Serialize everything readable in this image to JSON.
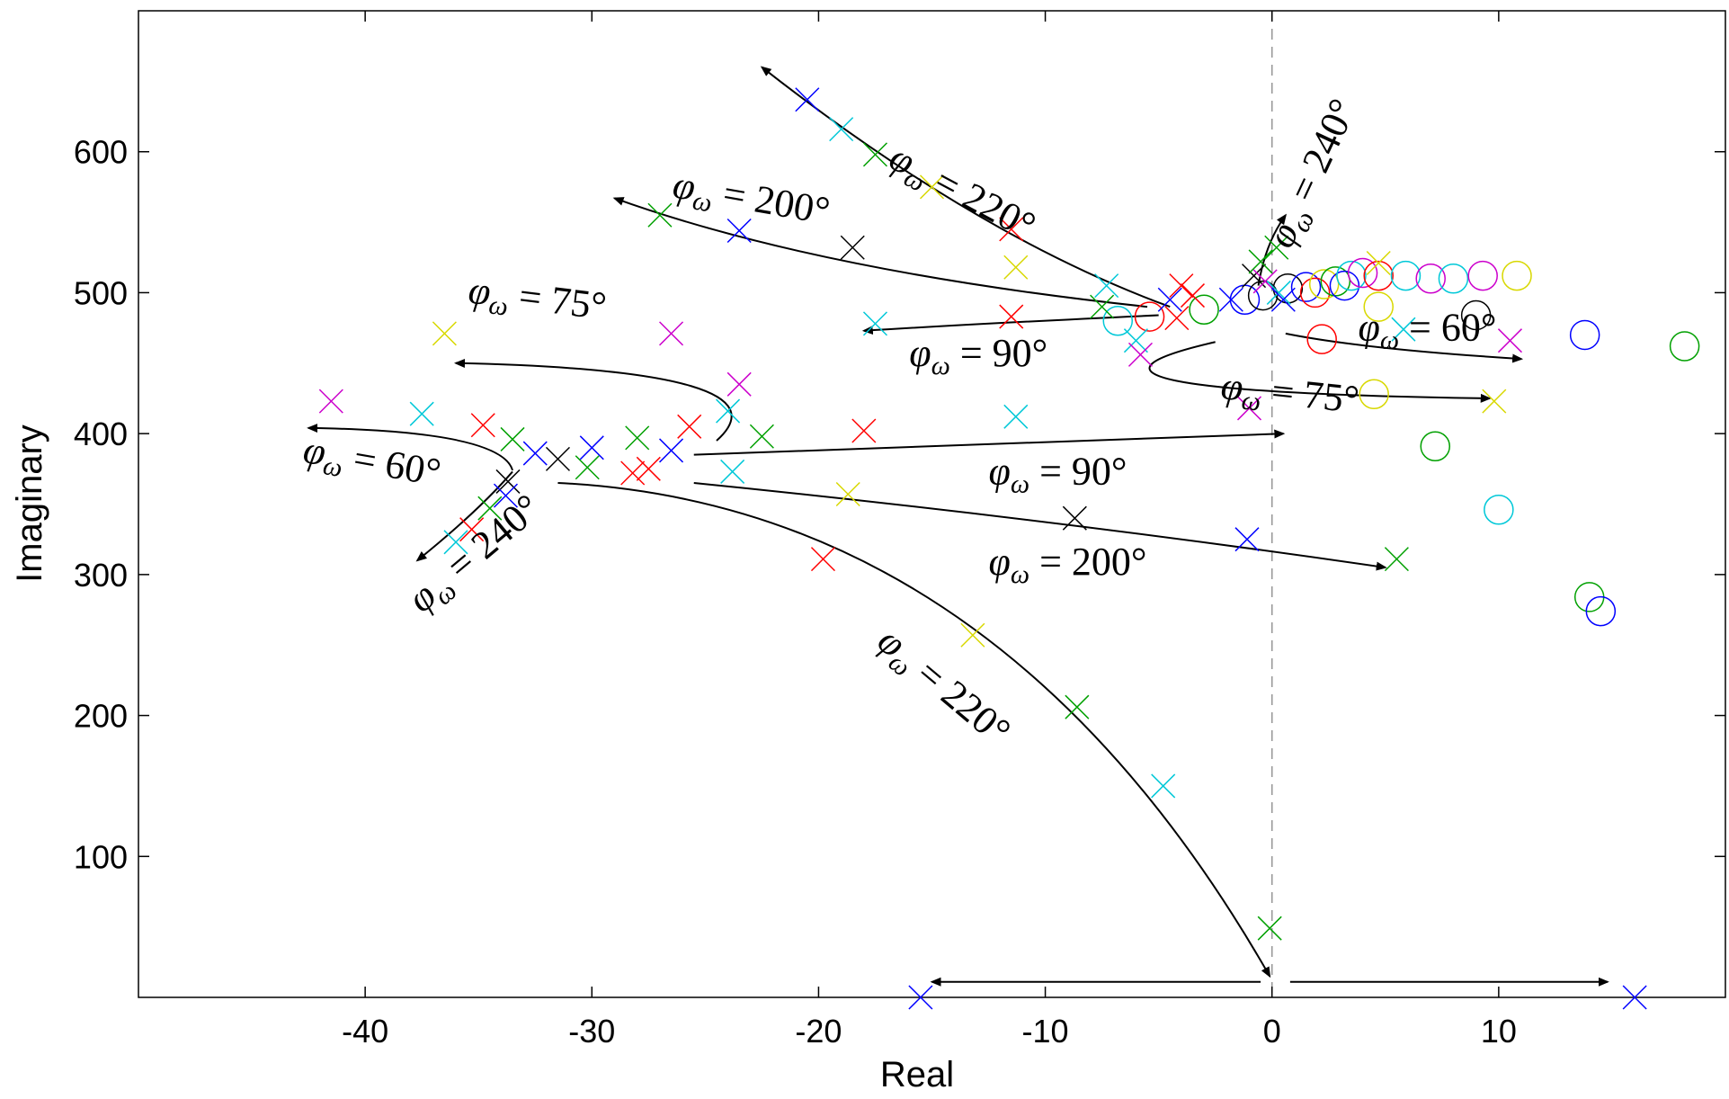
{
  "chart_data": {
    "type": "scatter",
    "title": "",
    "xlabel": "Real",
    "ylabel": "Imaginary",
    "xlim": [
      -50,
      20
    ],
    "ylim": [
      0,
      700
    ],
    "xticks": [
      -40,
      -30,
      -20,
      -10,
      0,
      10
    ],
    "xtick_labels": [
      "-40",
      "-30",
      "-20",
      "-10",
      "0",
      "10"
    ],
    "yticks": [
      100,
      200,
      300,
      400,
      500,
      600
    ],
    "ytick_labels": [
      "100",
      "200",
      "300",
      "400",
      "500",
      "600"
    ],
    "grid": false,
    "reference_line": {
      "x": 0,
      "style": "dashed"
    },
    "colors": {
      "blue": "#0000ff",
      "red": "#ff0000",
      "green": "#00a000",
      "cyan": "#00c8d8",
      "magenta": "#cc00cc",
      "yellow": "#d8d800",
      "black": "#000000"
    },
    "poles": [
      {
        "x": -20.5,
        "y": 637,
        "c": "blue"
      },
      {
        "x": -19,
        "y": 616,
        "c": "cyan"
      },
      {
        "x": -17.5,
        "y": 598,
        "c": "green"
      },
      {
        "x": -15,
        "y": 575,
        "c": "yellow"
      },
      {
        "x": -11.5,
        "y": 545,
        "c": "red"
      },
      {
        "x": -11.3,
        "y": 518,
        "c": "yellow"
      },
      {
        "x": -27,
        "y": 555,
        "c": "green"
      },
      {
        "x": -23.5,
        "y": 544,
        "c": "blue"
      },
      {
        "x": -18.5,
        "y": 532,
        "c": "black"
      },
      {
        "x": -7.3,
        "y": 505,
        "c": "cyan"
      },
      {
        "x": -7.5,
        "y": 490,
        "c": "green"
      },
      {
        "x": -11.5,
        "y": 483,
        "c": "red"
      },
      {
        "x": -17.5,
        "y": 478,
        "c": "cyan"
      },
      {
        "x": -6,
        "y": 466,
        "c": "cyan"
      },
      {
        "x": -5.8,
        "y": 456,
        "c": "magenta"
      },
      {
        "x": -4.5,
        "y": 495,
        "c": "blue"
      },
      {
        "x": -4,
        "y": 505,
        "c": "red"
      },
      {
        "x": -3.5,
        "y": 498,
        "c": "red"
      },
      {
        "x": -4.2,
        "y": 482,
        "c": "red"
      },
      {
        "x": -1.8,
        "y": 495,
        "c": "blue"
      },
      {
        "x": -0.8,
        "y": 512,
        "c": "black"
      },
      {
        "x": -0.5,
        "y": 522,
        "c": "green"
      },
      {
        "x": 0.2,
        "y": 532,
        "c": "green"
      },
      {
        "x": -0.3,
        "y": 508,
        "c": "magenta"
      },
      {
        "x": 0.3,
        "y": 500,
        "c": "cyan"
      },
      {
        "x": 0.5,
        "y": 495,
        "c": "blue"
      },
      {
        "x": -1,
        "y": 418,
        "c": "magenta"
      },
      {
        "x": -36.5,
        "y": 471,
        "c": "yellow"
      },
      {
        "x": -26.5,
        "y": 471,
        "c": "magenta"
      },
      {
        "x": -41.5,
        "y": 423,
        "c": "magenta"
      },
      {
        "x": -37.5,
        "y": 414,
        "c": "cyan"
      },
      {
        "x": -34.8,
        "y": 406,
        "c": "red"
      },
      {
        "x": -33.5,
        "y": 396,
        "c": "green"
      },
      {
        "x": -32.5,
        "y": 386,
        "c": "blue"
      },
      {
        "x": -31.5,
        "y": 382,
        "c": "black"
      },
      {
        "x": -30,
        "y": 390,
        "c": "blue"
      },
      {
        "x": -30.2,
        "y": 376,
        "c": "green"
      },
      {
        "x": -28,
        "y": 397,
        "c": "green"
      },
      {
        "x": -27.5,
        "y": 375,
        "c": "red"
      },
      {
        "x": -28.2,
        "y": 372,
        "c": "red"
      },
      {
        "x": -26.5,
        "y": 388,
        "c": "blue"
      },
      {
        "x": -25.7,
        "y": 405,
        "c": "red"
      },
      {
        "x": -24,
        "y": 416,
        "c": "cyan"
      },
      {
        "x": -23.5,
        "y": 435,
        "c": "magenta"
      },
      {
        "x": -22.5,
        "y": 398,
        "c": "green"
      },
      {
        "x": -23.8,
        "y": 373,
        "c": "cyan"
      },
      {
        "x": -18,
        "y": 402,
        "c": "red"
      },
      {
        "x": -11.3,
        "y": 412,
        "c": "cyan"
      },
      {
        "x": -33.7,
        "y": 366,
        "c": "black"
      },
      {
        "x": -33.8,
        "y": 356,
        "c": "blue"
      },
      {
        "x": -34.5,
        "y": 347,
        "c": "green"
      },
      {
        "x": -35.3,
        "y": 332,
        "c": "red"
      },
      {
        "x": -36,
        "y": 323,
        "c": "cyan"
      },
      {
        "x": -18.7,
        "y": 357,
        "c": "yellow"
      },
      {
        "x": -8.7,
        "y": 340,
        "c": "black"
      },
      {
        "x": -1.1,
        "y": 325,
        "c": "blue"
      },
      {
        "x": -19.8,
        "y": 311,
        "c": "red"
      },
      {
        "x": 5.5,
        "y": 311,
        "c": "green"
      },
      {
        "x": 9.8,
        "y": 423,
        "c": "yellow"
      },
      {
        "x": 10.5,
        "y": 466,
        "c": "magenta"
      },
      {
        "x": 5.8,
        "y": 474,
        "c": "cyan"
      },
      {
        "x": -13.2,
        "y": 257,
        "c": "yellow"
      },
      {
        "x": -8.6,
        "y": 206,
        "c": "green"
      },
      {
        "x": -4.8,
        "y": 150,
        "c": "cyan"
      },
      {
        "x": -0.1,
        "y": 49,
        "c": "green"
      },
      {
        "x": -15.5,
        "y": 0,
        "c": "blue"
      },
      {
        "x": 16,
        "y": 0,
        "c": "blue"
      },
      {
        "x": 4.7,
        "y": 521,
        "c": "yellow"
      }
    ],
    "zeros": [
      {
        "x": -5.4,
        "y": 483,
        "c": "red"
      },
      {
        "x": -6.8,
        "y": 480,
        "c": "cyan"
      },
      {
        "x": -3,
        "y": 488,
        "c": "green"
      },
      {
        "x": -1.2,
        "y": 495,
        "c": "blue"
      },
      {
        "x": -0.4,
        "y": 498,
        "c": "black"
      },
      {
        "x": 0.7,
        "y": 503,
        "c": "black"
      },
      {
        "x": 1.5,
        "y": 504,
        "c": "blue"
      },
      {
        "x": 1.9,
        "y": 500,
        "c": "red"
      },
      {
        "x": 2.3,
        "y": 506,
        "c": "yellow"
      },
      {
        "x": 2.8,
        "y": 508,
        "c": "green"
      },
      {
        "x": 3.2,
        "y": 505,
        "c": "blue"
      },
      {
        "x": 3.5,
        "y": 512,
        "c": "cyan"
      },
      {
        "x": 4,
        "y": 514,
        "c": "magenta"
      },
      {
        "x": 4.7,
        "y": 512,
        "c": "red"
      },
      {
        "x": 5.9,
        "y": 512,
        "c": "cyan"
      },
      {
        "x": 7,
        "y": 510,
        "c": "magenta"
      },
      {
        "x": 8,
        "y": 510,
        "c": "cyan"
      },
      {
        "x": 9.3,
        "y": 512,
        "c": "magenta"
      },
      {
        "x": 10.8,
        "y": 512,
        "c": "yellow"
      },
      {
        "x": 2.2,
        "y": 467,
        "c": "red"
      },
      {
        "x": 4.7,
        "y": 490,
        "c": "yellow"
      },
      {
        "x": 9,
        "y": 484,
        "c": "black"
      },
      {
        "x": 13.8,
        "y": 470,
        "c": "blue"
      },
      {
        "x": 18.2,
        "y": 462,
        "c": "green"
      },
      {
        "x": 4.5,
        "y": 428,
        "c": "yellow"
      },
      {
        "x": 7.2,
        "y": 391,
        "c": "green"
      },
      {
        "x": 10,
        "y": 346,
        "c": "cyan"
      },
      {
        "x": 14,
        "y": 284,
        "c": "green"
      },
      {
        "x": 14.5,
        "y": 274,
        "c": "blue"
      }
    ],
    "annotations": [
      {
        "base": "φ",
        "sub": "ω",
        "rest": " = 220°",
        "x": -17,
        "y": 590,
        "rotate": 28
      },
      {
        "base": "φ",
        "sub": "ω",
        "rest": " = 200°",
        "x": -26.5,
        "y": 568,
        "rotate": 10
      },
      {
        "base": "φ",
        "sub": "ω",
        "rest": " = 240°",
        "x": 0.8,
        "y": 530,
        "rotate": -65
      },
      {
        "base": "φ",
        "sub": "ω",
        "rest": " = 75°",
        "x": -35.5,
        "y": 493,
        "rotate": 7
      },
      {
        "base": "φ",
        "sub": "ω",
        "rest": " = 90°",
        "x": -16,
        "y": 448,
        "rotate": 0
      },
      {
        "base": "φ",
        "sub": "ω",
        "rest": " = 60°",
        "x": 3.8,
        "y": 466,
        "rotate": 0
      },
      {
        "base": "φ",
        "sub": "ω",
        "rest": " = 75°",
        "x": -2.3,
        "y": 425,
        "rotate": 6
      },
      {
        "base": "φ",
        "sub": "ω",
        "rest": " = 60°",
        "x": -42.8,
        "y": 380,
        "rotate": 10
      },
      {
        "base": "φ",
        "sub": "ω",
        "rest": " = 90°",
        "x": -12.5,
        "y": 364,
        "rotate": 0
      },
      {
        "base": "φ",
        "sub": "ω",
        "rest": " = 240°",
        "x": -37.5,
        "y": 272,
        "rotate": -40
      },
      {
        "base": "φ",
        "sub": "ω",
        "rest": " = 200°",
        "x": -12.5,
        "y": 300,
        "rotate": 0
      },
      {
        "base": "φ",
        "sub": "ω",
        "rest": " = 220°",
        "x": -17.5,
        "y": 250,
        "rotate": 40
      }
    ],
    "arrows": [
      {
        "from": [
          -4.5,
          490
        ],
        "ctrl": [
          -13,
          540
        ],
        "to": [
          -22.5,
          660
        ]
      },
      {
        "from": [
          -5.5,
          490
        ],
        "ctrl": [
          -20,
          515
        ],
        "to": [
          -29,
          567
        ]
      },
      {
        "from": [
          -0.6,
          505
        ],
        "ctrl": [
          -0.3,
          535
        ],
        "to": [
          0.6,
          555
        ]
      },
      {
        "from": [
          -24.5,
          395
        ],
        "ctrl": [
          -21,
          445
        ],
        "to": [
          -36,
          450
        ]
      },
      {
        "from": [
          -5,
          484
        ],
        "ctrl": [
          -13,
          478
        ],
        "to": [
          -18,
          473
        ]
      },
      {
        "from": [
          0.6,
          471
        ],
        "ctrl": [
          4,
          460
        ],
        "to": [
          11,
          453
        ]
      },
      {
        "from": [
          -2.5,
          465
        ],
        "ctrl": [
          -12,
          430
        ],
        "to": [
          9.6,
          425
        ]
      },
      {
        "from": [
          -33.5,
          374
        ],
        "ctrl": [
          -34,
          402
        ],
        "to": [
          -42.5,
          404
        ]
      },
      {
        "from": [
          -25.5,
          385
        ],
        "ctrl": [
          -12,
          392
        ],
        "to": [
          0.5,
          400
        ]
      },
      {
        "from": [
          -33.5,
          373
        ],
        "ctrl": [
          -35,
          345
        ],
        "to": [
          -37.7,
          310
        ]
      },
      {
        "from": [
          -25.5,
          365
        ],
        "ctrl": [
          -10,
          340
        ],
        "to": [
          5,
          305
        ]
      },
      {
        "from": [
          -31.5,
          365
        ],
        "ctrl": [
          -12,
          350
        ],
        "to": [
          -0.1,
          15
        ]
      },
      {
        "from": [
          -0.5,
          11
        ],
        "ctrl": [
          -8,
          11
        ],
        "to": [
          -15,
          11
        ]
      },
      {
        "from": [
          0.8,
          11
        ],
        "ctrl": [
          8,
          11
        ],
        "to": [
          14.8,
          11
        ]
      }
    ]
  }
}
